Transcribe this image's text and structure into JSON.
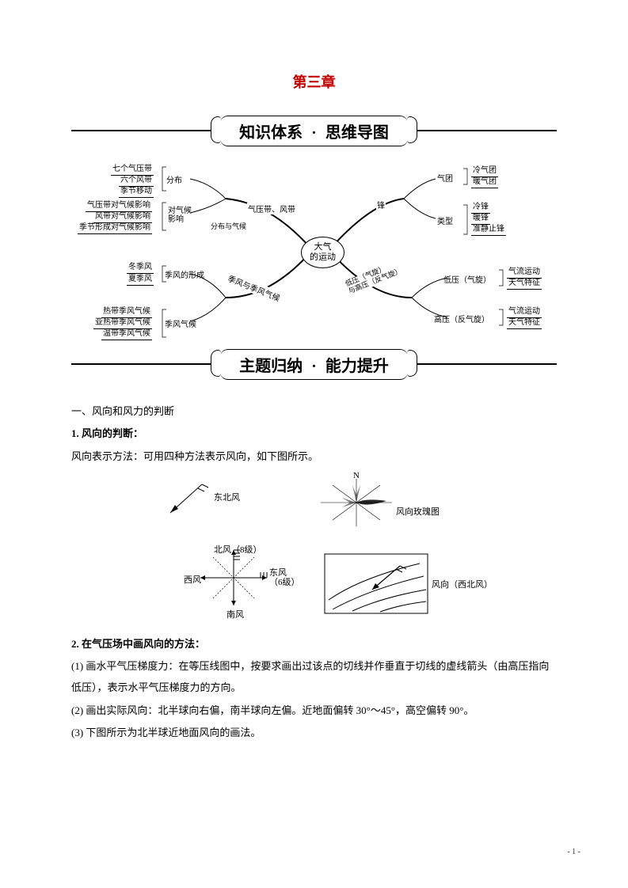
{
  "chapter_title": "第三章",
  "banner1_left": "知识体系",
  "banner1_right": "思维导图",
  "banner2_left": "主题归纳",
  "banner2_right": "能力提升",
  "mindmap": {
    "center": "大气\n的运动",
    "branches": {
      "top_left": {
        "connector": "气压带、风带",
        "sub1": {
          "label": "分布",
          "leaves": [
            "七个气压带",
            "六个风带",
            "季节移动"
          ]
        },
        "sub2": {
          "label": "对气候\n影响",
          "midlabel": "分布与气候",
          "leaves": [
            "气压带对气候影响",
            "风带对气候影响",
            "季节形成对气候影响"
          ]
        }
      },
      "bottom_left": {
        "connector": "季风与季风气候",
        "sub1": {
          "label": "季风的形成",
          "leaves": [
            "冬季风",
            "夏季风"
          ]
        },
        "sub2": {
          "label": "季风气候",
          "leaves": [
            "热带季风气候",
            "亚热带季风气候",
            "温带季风气候"
          ]
        }
      },
      "top_right": {
        "connector": "锋",
        "sub1": {
          "label": "气团",
          "leaves": [
            "冷气团",
            "暖气团"
          ]
        },
        "sub2": {
          "label": "类型",
          "leaves": [
            "冷锋",
            "暖锋",
            "准静止锋"
          ]
        }
      },
      "bottom_right": {
        "connector": "低压（气旋）\n与高压（反气旋）",
        "sub1": {
          "label": "低压（气旋）",
          "leaves": [
            "气流运动",
            "天气特征"
          ]
        },
        "sub2": {
          "label": "高压（反气旋）",
          "leaves": [
            "气流运动",
            "天气特征"
          ]
        }
      }
    }
  },
  "section1_title": "一、风向和风力的判断",
  "section1_1_title": "1. 风向的判断：",
  "section1_1_text": "风向表示方法：可用四种方法表示风向，如下图所示。",
  "wind_labels": {
    "ne": "东北风",
    "n_top": "N",
    "rose": "风向玫瑰图",
    "north8": "北风（8级）",
    "west": "西风",
    "east": "东风\n（6级）",
    "south": "南风",
    "nw": "风向（西北风）"
  },
  "section1_2_title": "2. 在气压场中画风向的方法：",
  "section1_2_p1": "(1) 画水平气压梯度力：在等压线图中，按要求画出过该点的切线并作垂直于切线的虚线箭头（由高压指向低压），表示水平气压梯度力的方向。",
  "section1_2_p2": "(2) 画出实际风向：北半球向右偏，南半球向左偏。近地面偏转 30°～45°，高空偏转 90°。",
  "section1_2_p3": "(3) 下图所示为北半球近地面风向的画法。",
  "page_number": "- 1 -",
  "colors": {
    "accent": "#c00000",
    "text": "#000000",
    "bg": "#ffffff"
  }
}
